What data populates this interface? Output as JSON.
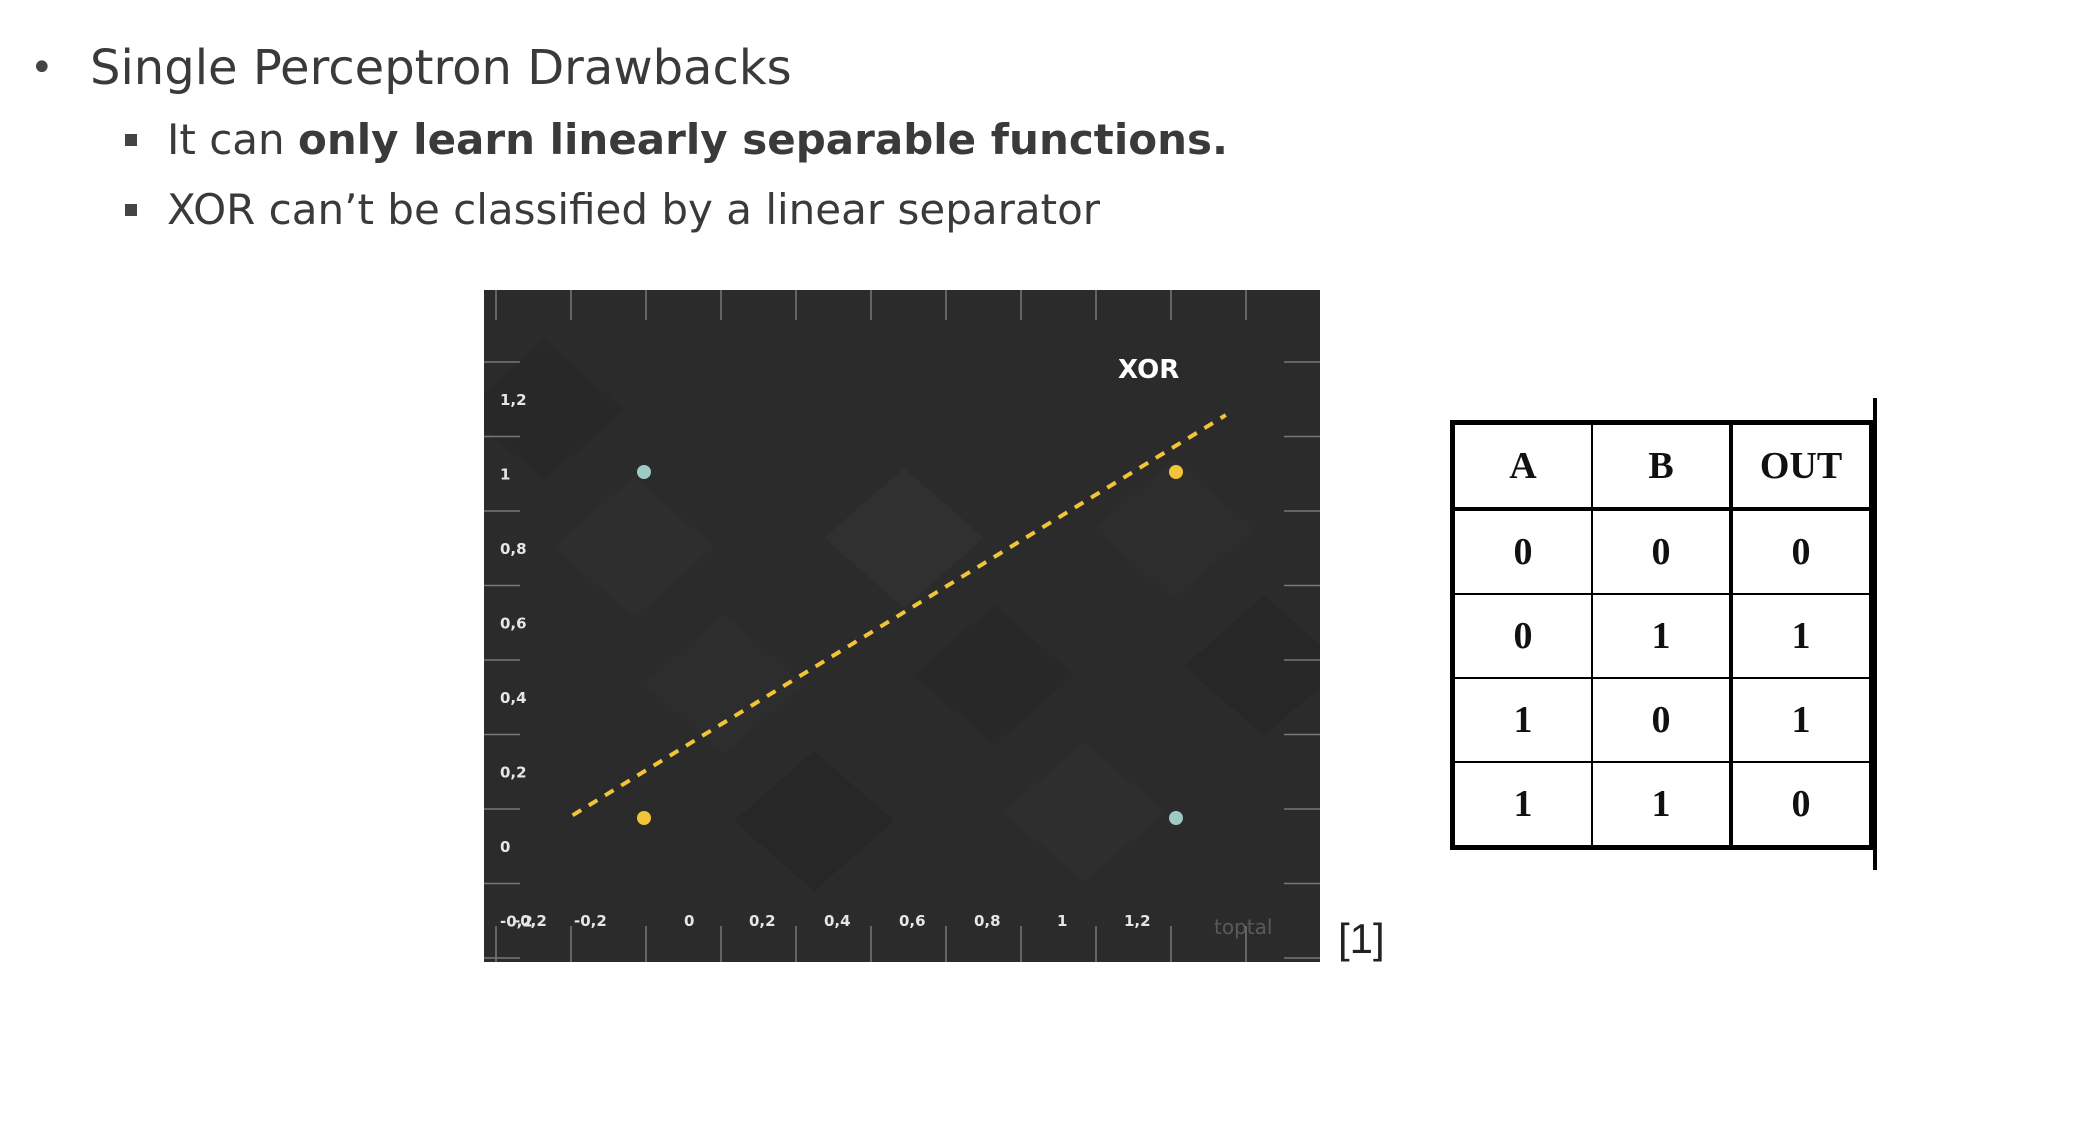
{
  "slide": {
    "heading": "Single Perceptron Drawbacks",
    "bullets": [
      {
        "prefix": "It can ",
        "bold": "only learn linearly separable functions."
      },
      {
        "text": "XOR can’t be classified by a linear separator"
      }
    ],
    "reference": "[1]"
  },
  "chart_data": {
    "type": "scatter",
    "title": "XOR",
    "x_tick_labels": [
      "-0,2",
      "-0,2",
      "0",
      "0,2",
      "0,4",
      "0,6",
      "0,8",
      "1",
      "1,2"
    ],
    "y_tick_labels": [
      "1,2",
      "1",
      "0,8",
      "0,6",
      "0,4",
      "0,2",
      "0",
      "-0,2"
    ],
    "series": [
      {
        "color": "#f2c438",
        "points": [
          [
            0,
            0
          ],
          [
            1,
            1
          ]
        ]
      },
      {
        "color": "#9ec9c4",
        "points": [
          [
            0,
            1
          ],
          [
            1,
            0
          ]
        ]
      }
    ],
    "separator": {
      "from": [
        -0.2,
        -0.05
      ],
      "to": [
        1.15,
        1.15
      ],
      "color": "#f2c438",
      "style": "dashed"
    },
    "watermark": "toptal",
    "background": "#2b2b2b"
  },
  "truth_table": {
    "headers": [
      "A",
      "B",
      "OUT"
    ],
    "rows": [
      [
        "0",
        "0",
        "0"
      ],
      [
        "0",
        "1",
        "1"
      ],
      [
        "1",
        "0",
        "1"
      ],
      [
        "1",
        "1",
        "0"
      ]
    ]
  }
}
